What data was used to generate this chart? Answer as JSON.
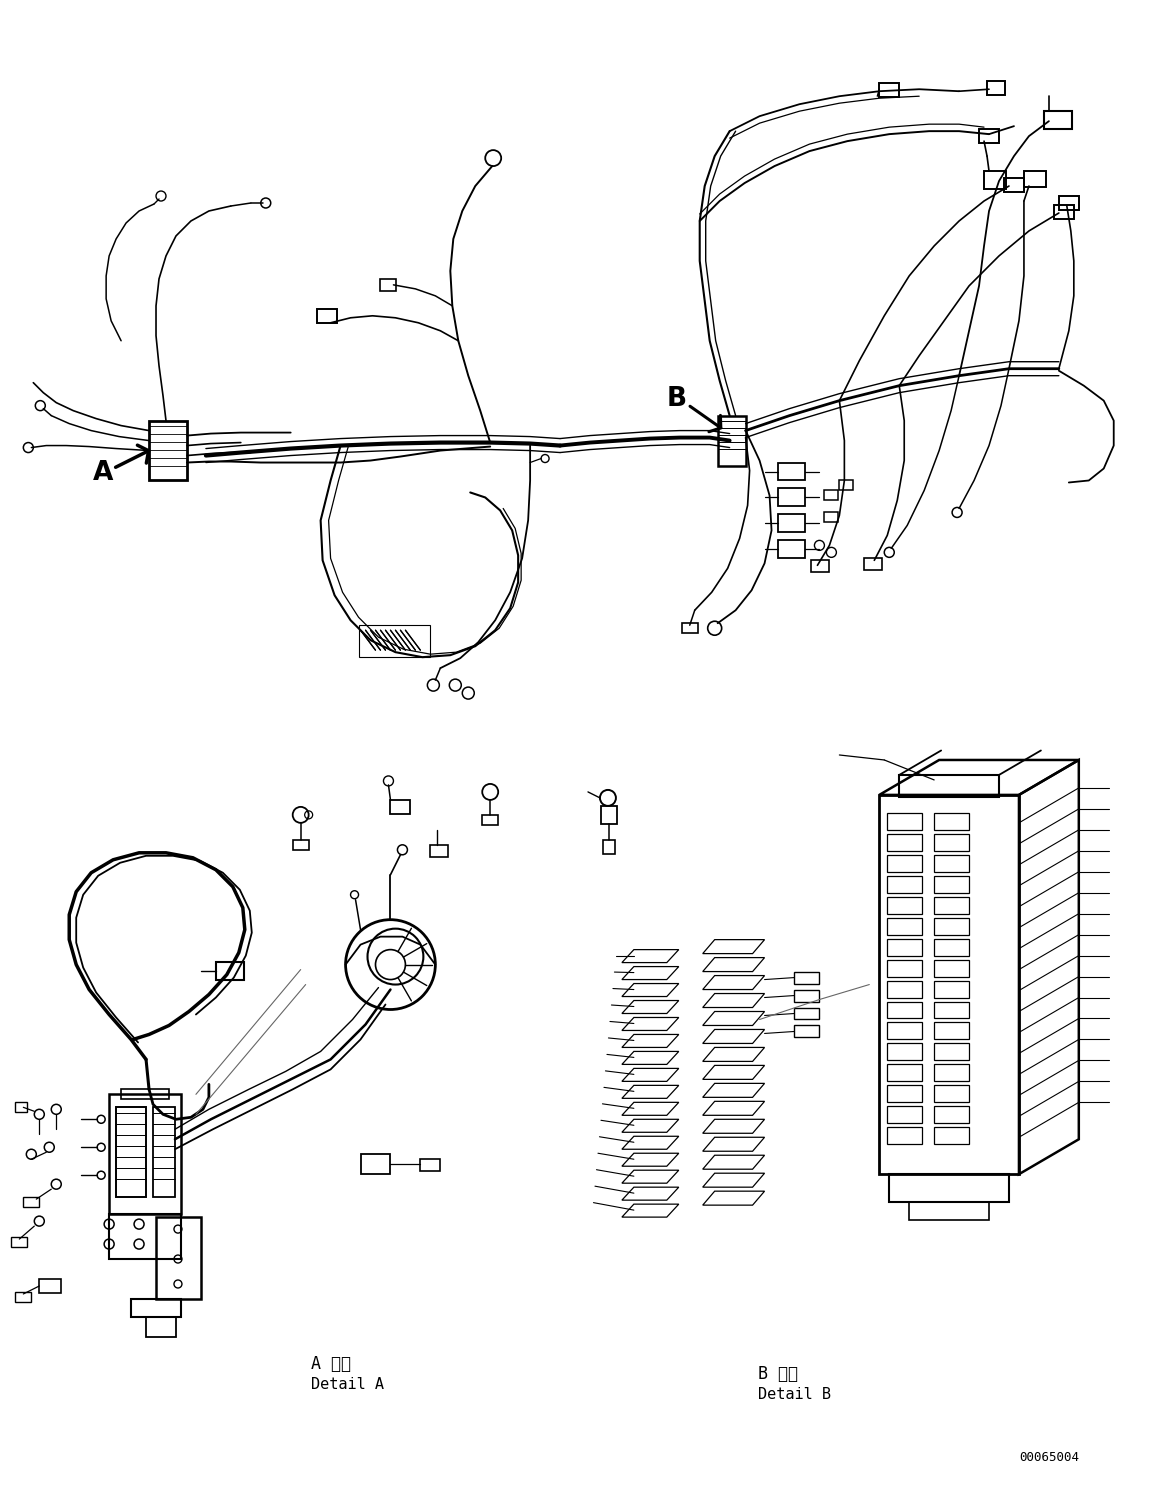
{
  "figure_width": 11.63,
  "figure_height": 14.88,
  "dpi": 100,
  "bg_color": "#ffffff",
  "lc": "#000000",
  "label_A": "A",
  "label_B": "B",
  "detail_A_jp": "A 詳細",
  "detail_A_en": "Detail A",
  "detail_B_jp": "B 詳細",
  "detail_B_en": "Detail B",
  "part_number": "00065004"
}
